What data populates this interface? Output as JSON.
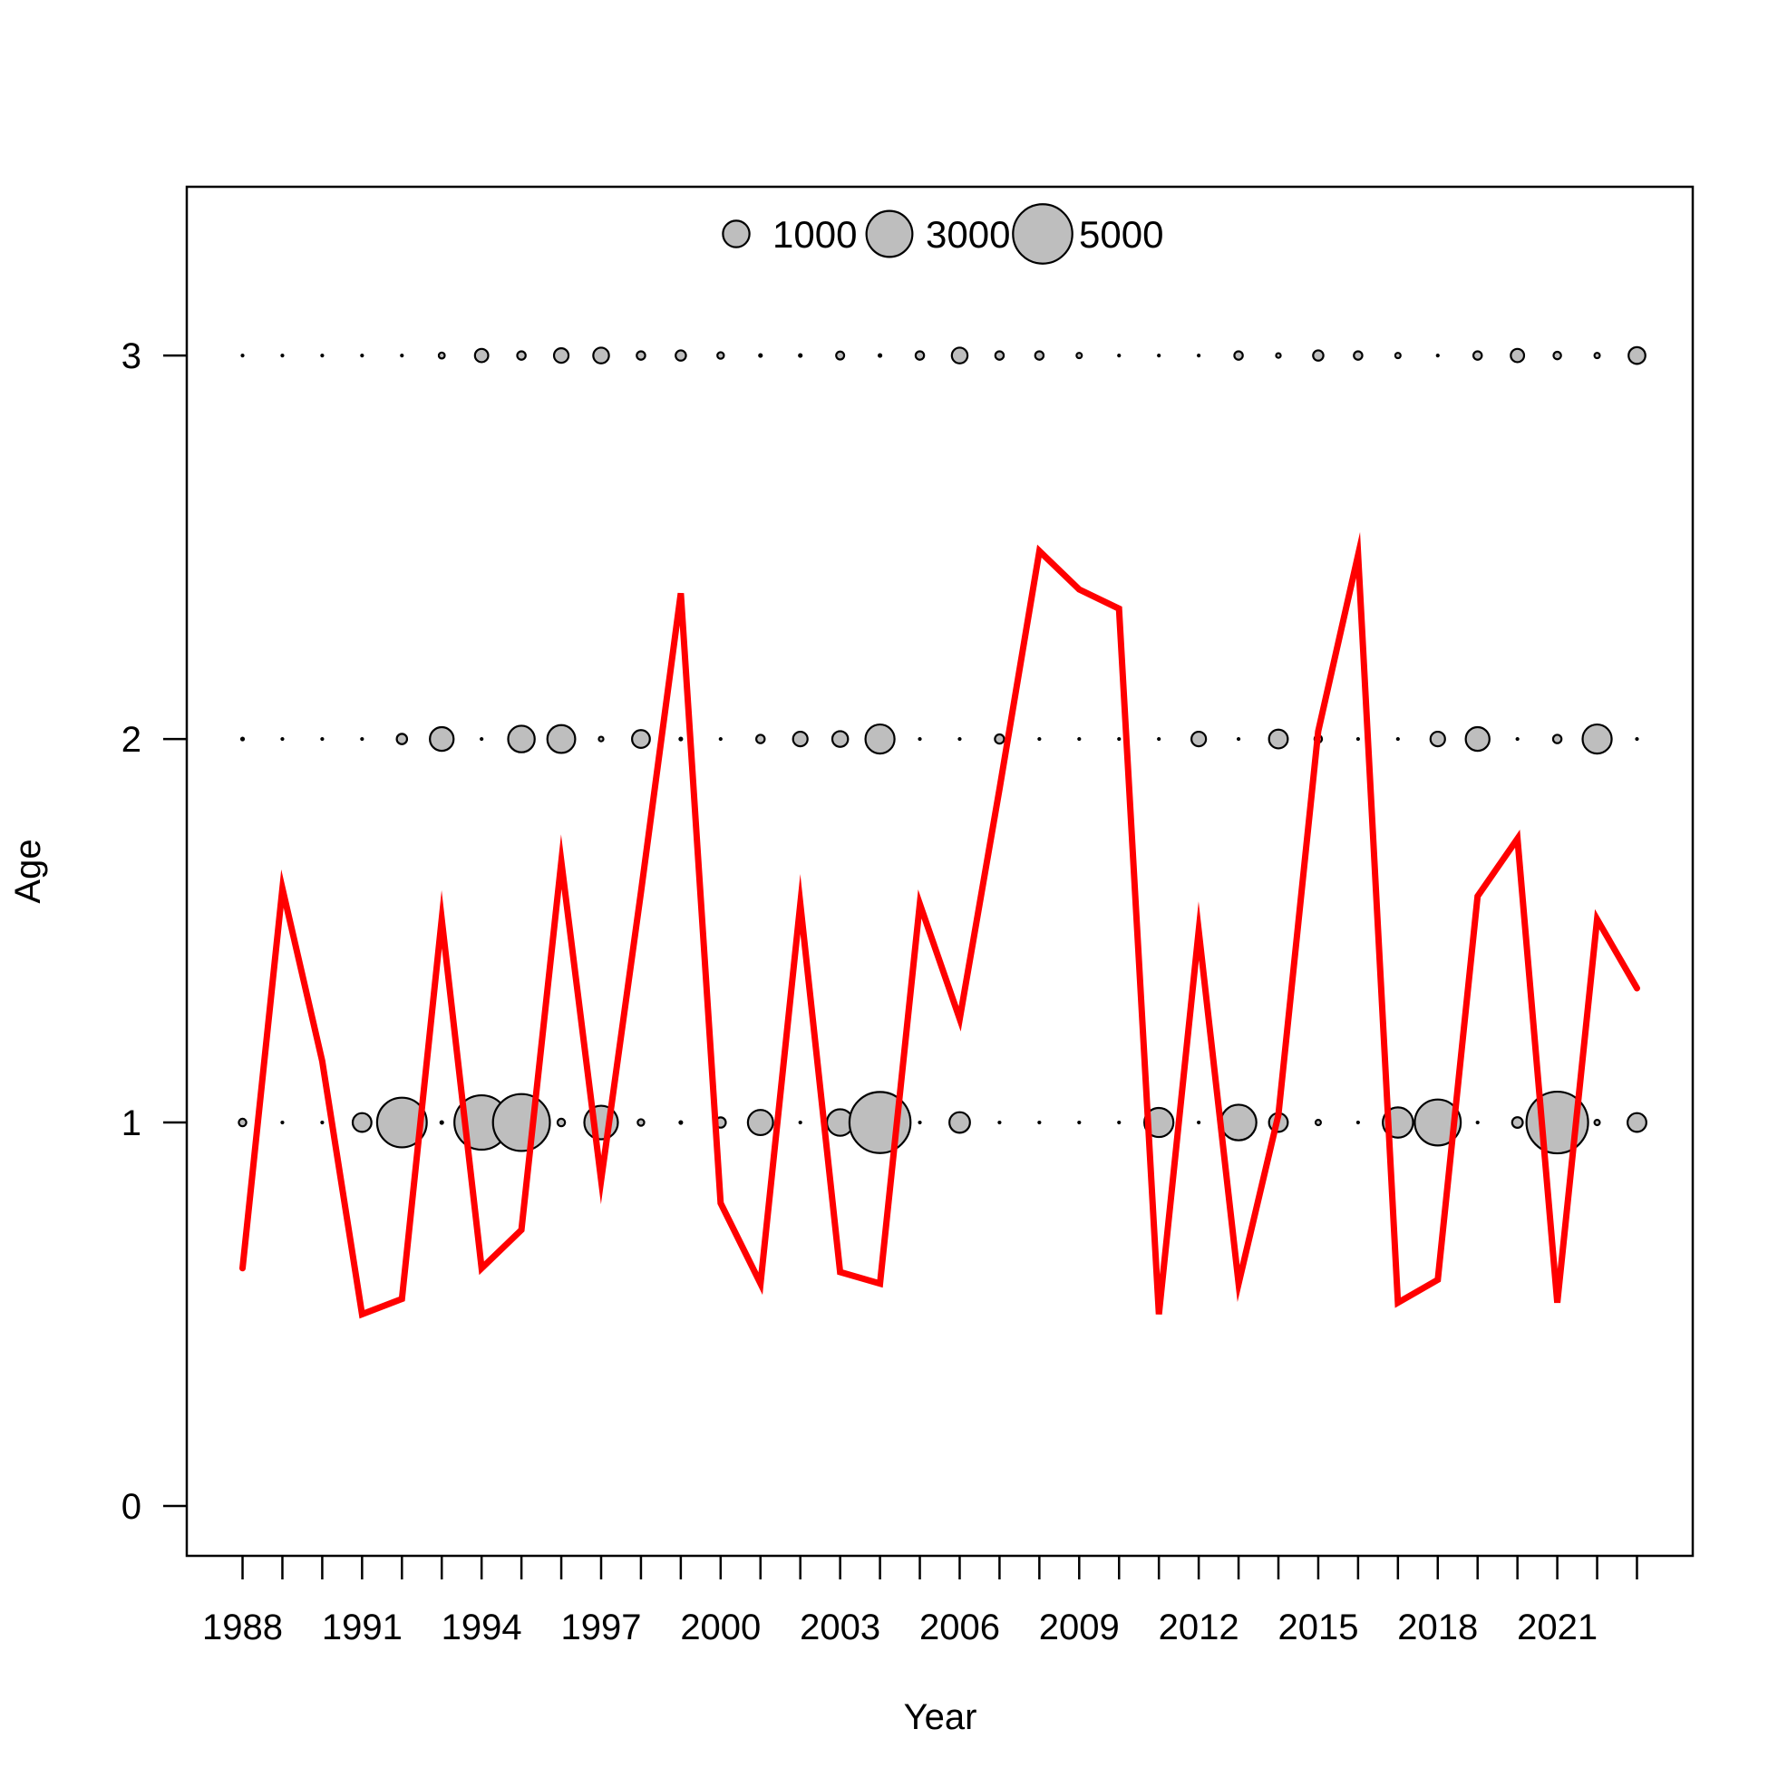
{
  "chart_data": {
    "type": "scatter",
    "xlabel": "Year",
    "ylabel": "Age",
    "xlim": [
      1986.6,
      2024.4
    ],
    "ylim": [
      -0.13,
      3.44
    ],
    "x_ticks": [
      1988,
      1989,
      1990,
      1991,
      1992,
      1993,
      1994,
      1995,
      1996,
      1997,
      1998,
      1999,
      2000,
      2001,
      2002,
      2003,
      2004,
      2005,
      2006,
      2007,
      2008,
      2009,
      2010,
      2011,
      2012,
      2013,
      2014,
      2015,
      2016,
      2017,
      2018,
      2019,
      2020,
      2021,
      2022,
      2023
    ],
    "x_tick_labels": [
      "1988",
      "1991",
      "1994",
      "1997",
      "2000",
      "2003",
      "2006",
      "2009",
      "2012",
      "2015",
      "2018",
      "2021"
    ],
    "y_ticks": [
      "0",
      "1",
      "2",
      "3"
    ],
    "grid": false,
    "legend": {
      "placement": "top",
      "entries": [
        "1000",
        "3000",
        "5000"
      ],
      "values": [
        1000,
        3000,
        5000
      ]
    },
    "years": [
      1988,
      1989,
      1990,
      1991,
      1992,
      1993,
      1994,
      1995,
      1996,
      1997,
      1998,
      1999,
      2000,
      2001,
      2002,
      2003,
      2004,
      2005,
      2006,
      2007,
      2008,
      2009,
      2010,
      2011,
      2012,
      2013,
      2014,
      2015,
      2016,
      2017,
      2018,
      2019,
      2020,
      2021,
      2022,
      2023
    ],
    "bubbles": [
      {
        "age": 1,
        "values": [
          80,
          0,
          0,
          500,
          3500,
          20,
          4200,
          4600,
          80,
          1600,
          60,
          20,
          150,
          900,
          0,
          1000,
          5300,
          0,
          600,
          0,
          0,
          0,
          0,
          1200,
          0,
          1800,
          500,
          40,
          0,
          1300,
          3000,
          0,
          160,
          5400,
          40,
          500
        ]
      },
      {
        "age": 2,
        "values": [
          20,
          0,
          0,
          0,
          150,
          800,
          0,
          1000,
          1100,
          30,
          450,
          20,
          0,
          100,
          300,
          350,
          1200,
          0,
          0,
          120,
          0,
          0,
          0,
          0,
          300,
          0,
          500,
          80,
          0,
          0,
          300,
          800,
          0,
          100,
          1200,
          0
        ]
      },
      {
        "age": 3,
        "values": [
          0,
          0,
          0,
          0,
          0,
          50,
          250,
          100,
          300,
          350,
          100,
          150,
          60,
          20,
          20,
          90,
          20,
          100,
          350,
          100,
          100,
          40,
          0,
          0,
          0,
          100,
          30,
          150,
          100,
          40,
          0,
          100,
          250,
          80,
          40,
          400
        ]
      }
    ],
    "series": [
      {
        "type": "line",
        "color": "#ff0000",
        "values": [
          0.62,
          1.61,
          1.16,
          0.5,
          0.54,
          1.53,
          0.62,
          0.72,
          1.68,
          0.85,
          1.6,
          2.38,
          0.79,
          0.58,
          1.57,
          0.61,
          0.58,
          1.57,
          1.27,
          1.87,
          2.49,
          2.39,
          2.34,
          0.5,
          1.5,
          0.58,
          1.02,
          2.02,
          2.48,
          0.53,
          0.59,
          1.59,
          1.74,
          0.53,
          1.53,
          1.35
        ]
      }
    ],
    "colors": {
      "bubble_fill": "#bebebe",
      "bubble_stroke": "#000000",
      "line": "#ff0000"
    }
  }
}
